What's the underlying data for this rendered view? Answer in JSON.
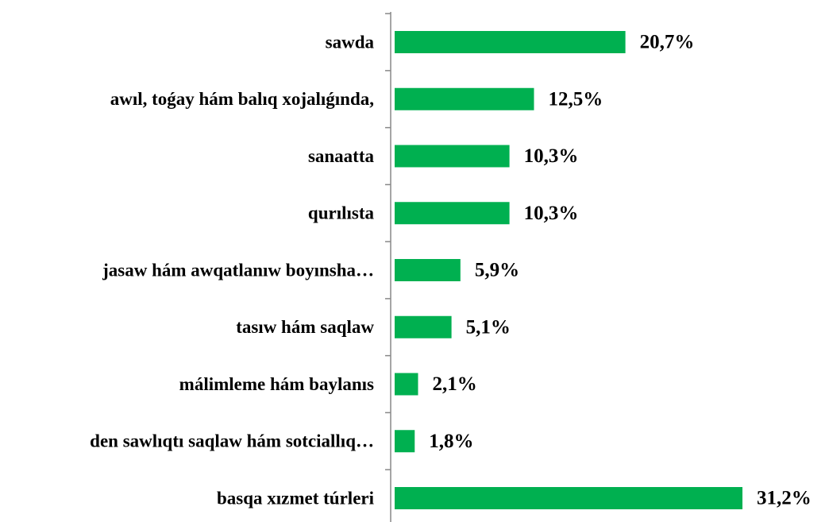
{
  "chart_data": {
    "type": "hbar",
    "categories": [
      "sawda",
      "awıl, toǵay hám balıq xojalıǵında,",
      "sanaatta",
      "qurılısta",
      "jasaw hám awqatlanıw boyınsha…",
      "tasıw hám saqlaw",
      "málimleme  hám baylanıs",
      "den sawlıqtı saqlaw hám sotciallıq…",
      "basqa xızmet túrleri"
    ],
    "values": [
      20.7,
      12.5,
      10.3,
      10.3,
      5.9,
      5.1,
      2.1,
      1.8,
      31.2
    ],
    "value_labels": [
      "20,7%",
      "12,5%",
      "10,3%",
      "10,3%",
      "5,9%",
      "5,1%",
      "2,1%",
      "1,8%",
      "31,2%"
    ],
    "color": "#00b050"
  }
}
